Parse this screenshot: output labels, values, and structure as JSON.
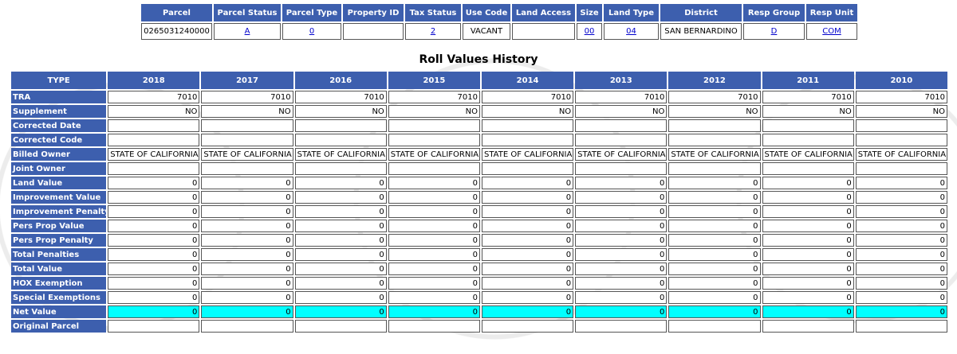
{
  "parcel_table": {
    "headers": [
      "Parcel",
      "Parcel Status",
      "Parcel Type",
      "Property ID",
      "Tax Status",
      "Use Code",
      "Land Access",
      "Size",
      "Land Type",
      "District",
      "Resp Group",
      "Resp Unit"
    ],
    "cells": [
      {
        "text": "0265031240000"
      },
      {
        "text": "A",
        "link": true
      },
      {
        "text": "0",
        "link": true
      },
      {
        "text": null
      },
      {
        "text": "2",
        "link": true
      },
      {
        "text": "VACANT"
      },
      {
        "text": null
      },
      {
        "text": "00",
        "link": true
      },
      {
        "text": "04",
        "link": true
      },
      {
        "text": "SAN BERNARDINO"
      },
      {
        "text": "D",
        "link": true
      },
      {
        "text": "COM",
        "link": true
      }
    ]
  },
  "roll_table": {
    "title": "Roll Values History",
    "type_header": "TYPE",
    "years": [
      "2018",
      "2017",
      "2016",
      "2015",
      "2014",
      "2013",
      "2012",
      "2011",
      "2010"
    ],
    "rows": [
      {
        "label": "TRA",
        "values": [
          7010,
          7010,
          7010,
          7010,
          7010,
          7010,
          7010,
          7010,
          7010
        ]
      },
      {
        "label": "Supplement",
        "values": [
          "NO",
          "NO",
          "NO",
          "NO",
          "NO",
          "NO",
          "NO",
          "NO",
          "NO"
        ]
      },
      {
        "label": "Corrected Date"
      },
      {
        "label": "Corrected Code"
      },
      {
        "label": "Billed Owner",
        "align": "left",
        "values": [
          "STATE OF CALIFORNIA",
          "STATE OF CALIFORNIA",
          "STATE OF CALIFORNIA",
          "STATE OF CALIFORNIA",
          "STATE OF CALIFORNIA",
          "STATE OF CALIFORNIA",
          "STATE OF CALIFORNIA",
          "STATE OF CALIFORNIA",
          "STATE OF CALIFORNIA"
        ]
      },
      {
        "label": "Joint Owner"
      },
      {
        "label": "Land Value",
        "values": [
          0,
          0,
          0,
          0,
          0,
          0,
          0,
          0,
          0
        ]
      },
      {
        "label": "Improvement Value",
        "values": [
          0,
          0,
          0,
          0,
          0,
          0,
          0,
          0,
          0
        ]
      },
      {
        "label": "Improvement Penalty",
        "values": [
          0,
          0,
          0,
          0,
          0,
          0,
          0,
          0,
          0
        ]
      },
      {
        "label": "Pers Prop Value",
        "values": [
          0,
          0,
          0,
          0,
          0,
          0,
          0,
          0,
          0
        ]
      },
      {
        "label": "Pers Prop Penalty",
        "values": [
          0,
          0,
          0,
          0,
          0,
          0,
          0,
          0,
          0
        ]
      },
      {
        "label": "Total Penalties",
        "values": [
          0,
          0,
          0,
          0,
          0,
          0,
          0,
          0,
          0
        ]
      },
      {
        "label": "Total Value",
        "values": [
          0,
          0,
          0,
          0,
          0,
          0,
          0,
          0,
          0
        ]
      },
      {
        "label": "HOX Exemption",
        "values": [
          0,
          0,
          0,
          0,
          0,
          0,
          0,
          0,
          0
        ]
      },
      {
        "label": "Special Exemptions",
        "values": [
          0,
          0,
          0,
          0,
          0,
          0,
          0,
          0,
          0
        ]
      },
      {
        "label": "Net Value",
        "highlight_color": "#00ffff",
        "values": [
          0,
          0,
          0,
          0,
          0,
          0,
          0,
          0,
          0
        ]
      },
      {
        "label": "Original Parcel"
      }
    ]
  }
}
